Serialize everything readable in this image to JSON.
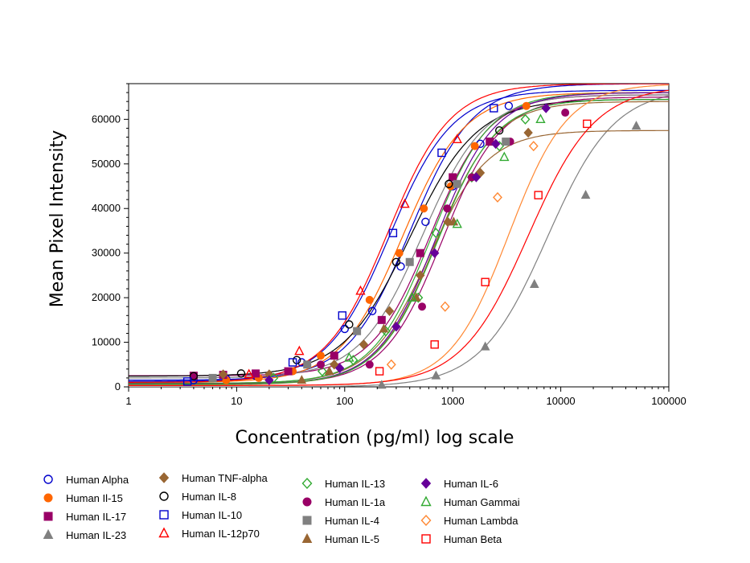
{
  "chart_data": {
    "type": "scatter",
    "title": "",
    "xlabel": "Concentration (pg/ml) log scale",
    "ylabel": "Mean Pixel Intensity",
    "xscale": "log",
    "xlim": [
      1,
      100000
    ],
    "ylim": [
      0,
      68000
    ],
    "x_ticks": [
      1,
      10,
      100,
      1000,
      10000,
      100000
    ],
    "x_tick_labels": [
      "1",
      "10",
      "100",
      "1000",
      "10000",
      "100000"
    ],
    "y_ticks": [
      0,
      10000,
      20000,
      30000,
      40000,
      50000,
      60000
    ],
    "y_tick_labels": [
      "0",
      "10000",
      "20000",
      "30000",
      "40000",
      "50000",
      "60000"
    ],
    "grid": false,
    "legend_position": "bottom",
    "series": [
      {
        "name": "Human Alpha",
        "color": "#0000cc",
        "marker": "circle-open",
        "fit": {
          "min": 1500,
          "max": 68000,
          "ec50": 400,
          "hill": 1.5
        },
        "x": [
          4,
          8,
          15,
          40,
          100,
          180,
          330,
          560,
          1000,
          1800,
          3300
        ],
        "y": [
          1500,
          1800,
          2500,
          5500,
          13000,
          17000,
          27000,
          37000,
          45000,
          54500,
          63000
        ]
      },
      {
        "name": "Human Il-15",
        "color": "#ff6600",
        "marker": "circle-filled",
        "fit": {
          "min": 1000,
          "max": 66000,
          "ec50": 340,
          "hill": 1.5
        },
        "x": [
          8,
          16,
          33,
          60,
          170,
          320,
          540,
          960,
          1600,
          4800
        ],
        "y": [
          1500,
          2000,
          3500,
          7000,
          19500,
          30000,
          40000,
          45000,
          54000,
          63000
        ]
      },
      {
        "name": "Human IL-17",
        "color": "#990066",
        "marker": "square-filled",
        "fit": {
          "min": 2500,
          "max": 65500,
          "ec50": 620,
          "hill": 1.6
        },
        "x": [
          4,
          7.5,
          15,
          30,
          80,
          220,
          500,
          1000,
          2200
        ],
        "y": [
          2500,
          2700,
          3000,
          3500,
          7000,
          15000,
          30000,
          47000,
          55000
        ]
      },
      {
        "name": "Human IL-23",
        "color": "#808080",
        "marker": "triangle-filled",
        "fit": {
          "min": 0,
          "max": 67000,
          "ec50": 7500,
          "hill": 1.4
        },
        "x": [
          220,
          700,
          2000,
          5700,
          17000,
          50000
        ],
        "y": [
          400,
          2500,
          9000,
          23000,
          43000,
          58500
        ]
      },
      {
        "name": "Human TNF-alpha",
        "color": "#996633",
        "marker": "diamond-filled",
        "fit": {
          "min": 800,
          "max": 57500,
          "ec50": 600,
          "hill": 1.6
        },
        "x": [
          7.5,
          20,
          80,
          150,
          260,
          500,
          900,
          1800,
          5000
        ],
        "y": [
          2800,
          2800,
          5000,
          9500,
          17000,
          25000,
          37000,
          48000,
          57000
        ]
      },
      {
        "name": "Human IL-8",
        "color": "#000000",
        "marker": "circle-open",
        "fit": {
          "min": 2400,
          "max": 64500,
          "ec50": 400,
          "hill": 1.4
        },
        "x": [
          4,
          11,
          36,
          110,
          300,
          920,
          2700
        ],
        "y": [
          2400,
          3000,
          6000,
          14000,
          28000,
          45500,
          57500
        ]
      },
      {
        "name": "Human IL-10",
        "color": "#0000cc",
        "marker": "square-open",
        "fit": {
          "min": 1200,
          "max": 66500,
          "ec50": 260,
          "hill": 1.5
        },
        "x": [
          3.5,
          33,
          95,
          280,
          790,
          2400
        ],
        "y": [
          1200,
          5500,
          16000,
          34500,
          52500,
          62500
        ]
      },
      {
        "name": "Human IL-12p70",
        "color": "#ff0000",
        "marker": "triangle-open",
        "fit": {
          "min": 1000,
          "max": 68000,
          "ec50": 250,
          "hill": 1.5
        },
        "x": [
          13,
          38,
          140,
          360,
          1100
        ],
        "y": [
          2800,
          8000,
          21500,
          41000,
          55500
        ]
      },
      {
        "name": "Human IL-13",
        "color": "#33aa33",
        "marker": "diamond-open",
        "fit": {
          "min": 800,
          "max": 66000,
          "ec50": 630,
          "hill": 1.6
        },
        "x": [
          22,
          62,
          120,
          240,
          480,
          700,
          1500,
          2700,
          4700
        ],
        "y": [
          2000,
          3500,
          6000,
          12500,
          20000,
          34500,
          47000,
          54000,
          60000
        ]
      },
      {
        "name": "Human IL-1a",
        "color": "#990066",
        "marker": "circle-filled",
        "fit": {
          "min": 700,
          "max": 65000,
          "ec50": 800,
          "hill": 1.6
        },
        "x": [
          60,
          170,
          520,
          890,
          1500,
          3400,
          11000
        ],
        "y": [
          5000,
          5000,
          18000,
          40000,
          47000,
          55000,
          61500
        ]
      },
      {
        "name": "Human IL-4",
        "color": "#808080",
        "marker": "square-filled",
        "fit": {
          "min": 2000,
          "max": 65500,
          "ec50": 520,
          "hill": 1.5
        },
        "x": [
          6,
          45,
          130,
          400,
          1100,
          3100
        ],
        "y": [
          2000,
          5000,
          12500,
          28000,
          45500,
          55000
        ]
      },
      {
        "name": "Human IL-5",
        "color": "#996633",
        "marker": "triangle-filled",
        "fit": {
          "min": 500,
          "max": 64000,
          "ec50": 700,
          "hill": 1.6
        },
        "x": [
          40,
          72,
          230,
          460,
          1020
        ],
        "y": [
          1500,
          3500,
          13000,
          20000,
          37000
        ]
      },
      {
        "name": "Human IL-6",
        "color": "#660099",
        "marker": "diamond-filled",
        "fit": {
          "min": 600,
          "max": 66000,
          "ec50": 700,
          "hill": 1.6
        },
        "x": [
          20,
          90,
          300,
          680,
          1650,
          2500,
          7300
        ],
        "y": [
          1500,
          4200,
          13500,
          30000,
          47000,
          54500,
          62500
        ]
      },
      {
        "name": "Human Gammai",
        "color": "#33aa33",
        "marker": "triangle-open",
        "fit": {
          "min": 600,
          "max": 64500,
          "ec50": 720,
          "hill": 1.6
        },
        "x": [
          110,
          420,
          1100,
          3000,
          6500
        ],
        "y": [
          6500,
          20000,
          36500,
          51500,
          60000
        ]
      },
      {
        "name": "Human Lambda",
        "color": "#ff8833",
        "marker": "diamond-open",
        "fit": {
          "min": 300,
          "max": 68000,
          "ec50": 3300,
          "hill": 1.6
        },
        "x": [
          270,
          850,
          2600,
          5600
        ],
        "y": [
          5000,
          18000,
          42500,
          54000
        ]
      },
      {
        "name": "Human Beta",
        "color": "#ff0000",
        "marker": "square-open",
        "fit": {
          "min": 300,
          "max": 67500,
          "ec50": 5000,
          "hill": 1.4
        },
        "x": [
          210,
          680,
          2000,
          6200,
          17500
        ],
        "y": [
          3500,
          9500,
          23500,
          43000,
          59000
        ]
      }
    ],
    "legend_columns": [
      [
        "Human Alpha",
        "Human Il-15",
        "Human IL-17",
        "Human IL-23"
      ],
      [
        "Human TNF-alpha",
        "Human IL-8",
        "Human IL-10",
        "Human IL-12p70"
      ],
      [
        "Human IL-13",
        "Human IL-1a",
        "Human IL-4",
        "Human IL-5"
      ],
      [
        "Human IL-6",
        "Human Gammai",
        "Human Lambda",
        "Human Beta"
      ]
    ]
  }
}
